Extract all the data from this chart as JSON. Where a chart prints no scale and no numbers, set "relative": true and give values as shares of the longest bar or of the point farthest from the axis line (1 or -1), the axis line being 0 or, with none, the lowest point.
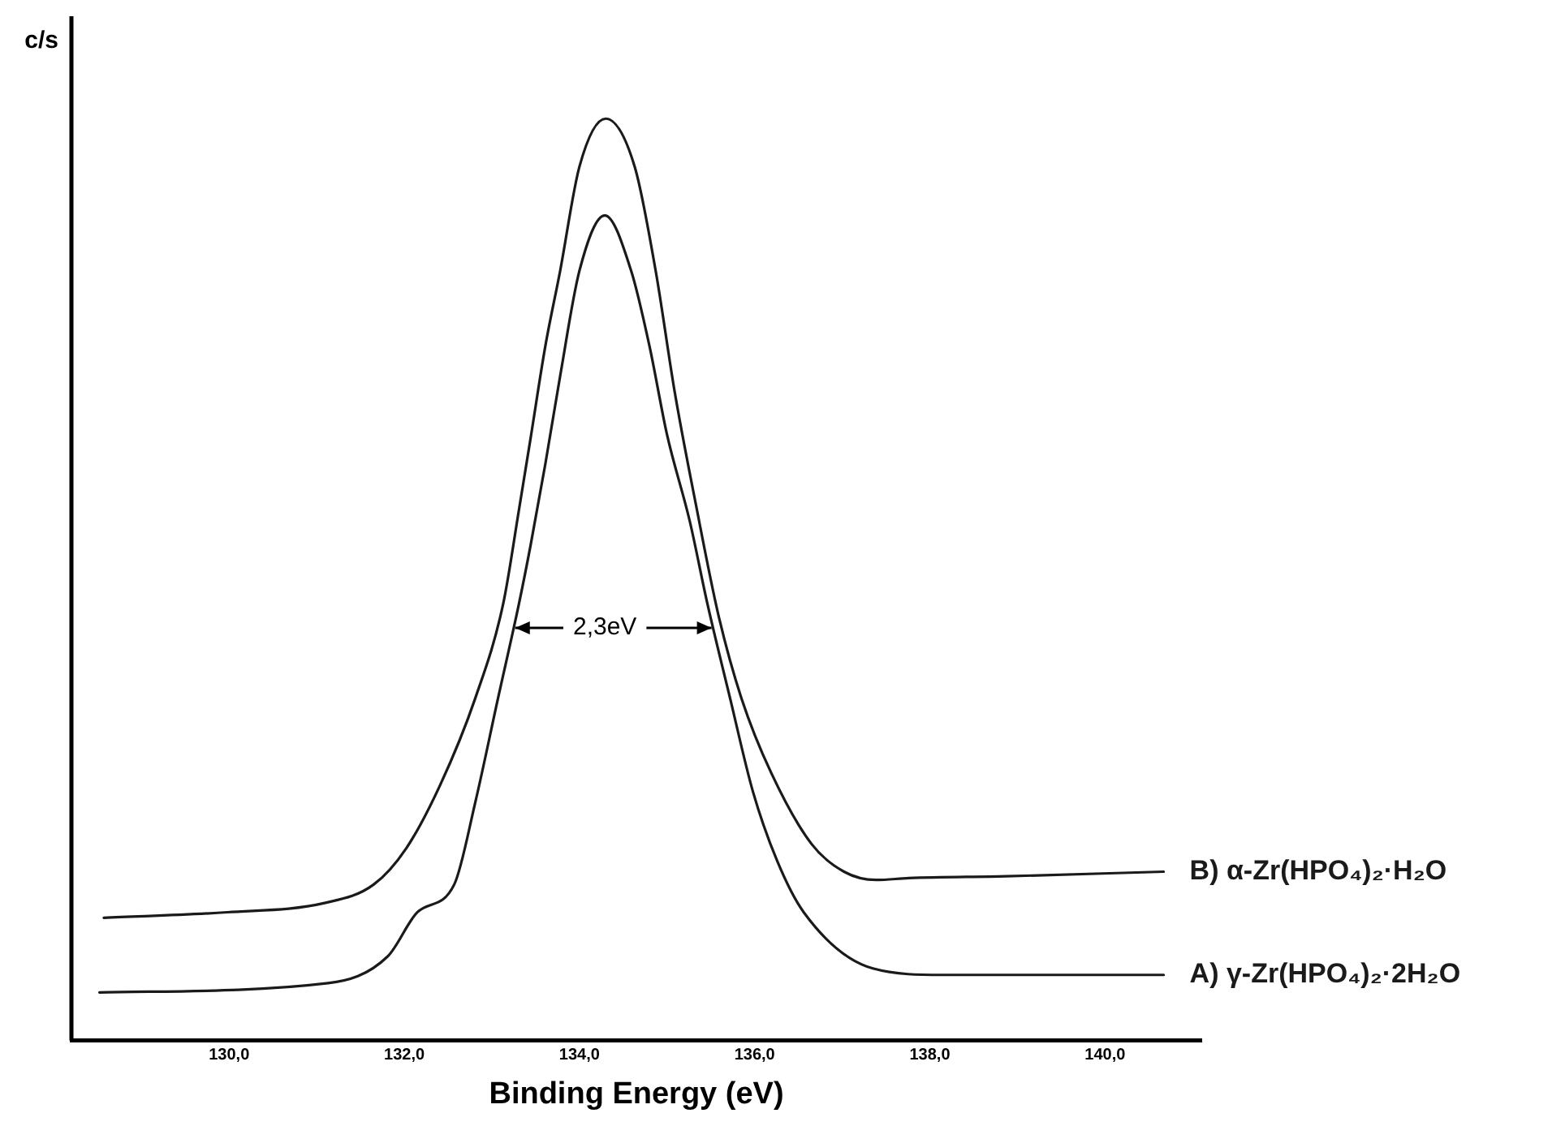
{
  "chart_data": {
    "type": "line",
    "xlabel": "Binding Energy (eV)",
    "ylabel": "c/s",
    "relative": true,
    "grid": false,
    "legend": false,
    "marker": "none",
    "line_style": "solid",
    "xlim": [
      128.2,
      141.1
    ],
    "xticks": [
      {
        "value": 130,
        "label": "130,0"
      },
      {
        "value": 132,
        "label": "132,0"
      },
      {
        "value": 134,
        "label": "134,0"
      },
      {
        "value": 136,
        "label": "136,0"
      },
      {
        "value": 138,
        "label": "138,0"
      },
      {
        "value": 140,
        "label": "140,0"
      }
    ],
    "annotations": [
      "2,3eV"
    ],
    "series": [
      {
        "name": "B) α-Zr(HPO₄)₂·H₂O",
        "color": "#1a1a1a",
        "x": [
          128.57,
          129.98,
          131.09,
          131.65,
          132.02,
          132.41,
          132.81,
          133.13,
          133.31,
          133.44,
          133.61,
          133.78,
          134.0,
          134.3,
          134.63,
          134.87,
          135.09,
          135.33,
          135.59,
          135.85,
          136.19,
          136.65,
          137.02,
          137.39,
          137.76,
          138.87,
          140.67
        ],
        "values": [
          0.133,
          0.139,
          0.149,
          0.169,
          0.208,
          0.277,
          0.371,
          0.474,
          0.576,
          0.652,
          0.753,
          0.835,
          0.948,
          1,
          0.948,
          0.835,
          0.702,
          0.581,
          0.46,
          0.371,
          0.29,
          0.213,
          0.183,
          0.174,
          0.176,
          0.178,
          0.183
        ]
      },
      {
        "name": "A) γ-Zr(HPO₄)₂·2H₂O",
        "color": "#1a1a1a",
        "x": [
          128.52,
          131.13,
          131.81,
          132.15,
          132.57,
          132.81,
          133.07,
          133.31,
          133.44,
          133.61,
          133.78,
          134.0,
          134.29,
          134.59,
          134.8,
          135.0,
          135.26,
          135.46,
          135.72,
          135.98,
          136.26,
          136.56,
          137.35,
          138.15,
          140.67
        ],
        "values": [
          0.052,
          0.062,
          0.091,
          0.139,
          0.169,
          0.258,
          0.371,
          0.474,
          0.536,
          0.625,
          0.721,
          0.835,
          0.895,
          0.835,
          0.753,
          0.657,
          0.563,
          0.474,
          0.371,
          0.27,
          0.194,
          0.139,
          0.078,
          0.071,
          0.071
        ]
      }
    ]
  }
}
